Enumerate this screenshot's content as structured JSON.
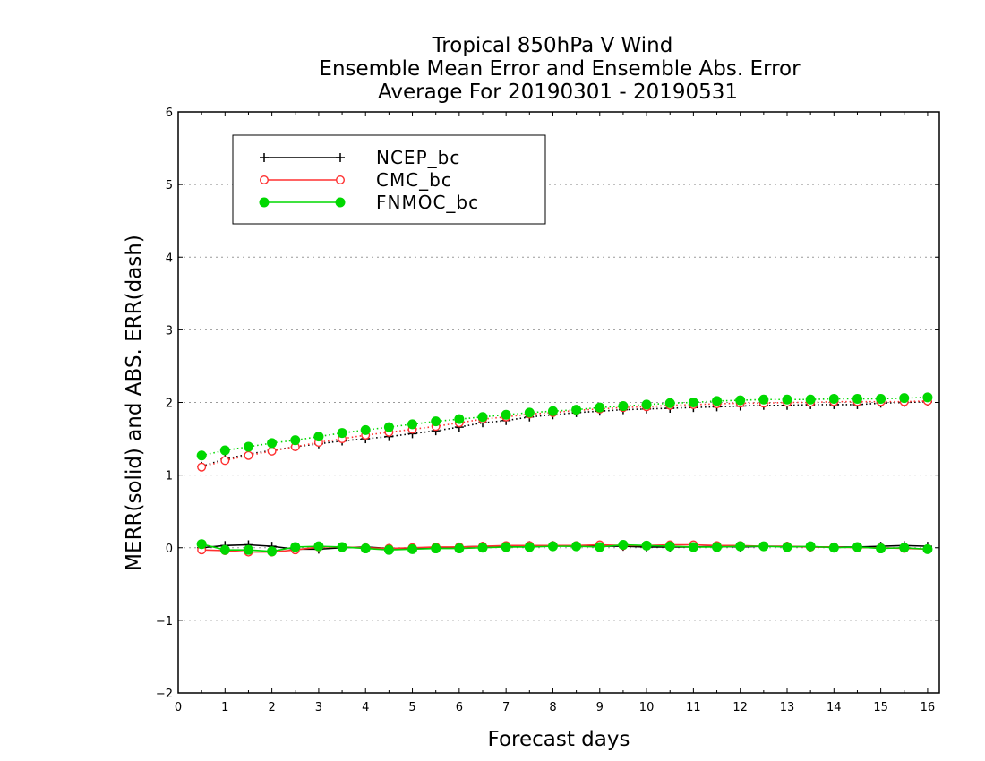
{
  "chart_data": {
    "type": "line",
    "title": [
      "Tropical 850hPa V Wind",
      "Ensemble Mean Error and Ensemble Abs. Error",
      "Average For 20190301 - 20190531"
    ],
    "xlabel": "Forecast days",
    "ylabel": "MERR(solid) and ABS. ERR(dash)",
    "xlim": [
      0,
      16.25
    ],
    "ylim": [
      -2,
      6
    ],
    "xticks": [
      0,
      1,
      2,
      3,
      4,
      5,
      6,
      7,
      8,
      9,
      10,
      11,
      12,
      13,
      14,
      15,
      16
    ],
    "yticks": [
      -2,
      -1,
      0,
      1,
      2,
      3,
      4,
      5,
      6
    ],
    "ytick_labels": [
      "−2",
      "−1",
      "0",
      "1",
      "2",
      "3",
      "4",
      "5",
      "6"
    ],
    "grid": "horizontal dotted",
    "legend": {
      "placement": "top-left",
      "entries": [
        {
          "name": "NCEP_bc",
          "color": "#000000",
          "marker": "plus"
        },
        {
          "name": "CMC_bc",
          "color": "#ff3030",
          "marker": "open-circle"
        },
        {
          "name": "FNMOC_bc",
          "color": "#00d800",
          "marker": "filled-circle"
        }
      ]
    },
    "x": [
      0.5,
      1,
      1.5,
      2,
      2.5,
      3,
      3.5,
      4,
      4.5,
      5,
      5.5,
      6,
      6.5,
      7,
      7.5,
      8,
      8.5,
      9,
      9.5,
      10,
      10.5,
      11,
      11.5,
      12,
      12.5,
      13,
      13.5,
      14,
      14.5,
      15,
      15.5,
      16
    ],
    "series": [
      {
        "name": "NCEP_bc",
        "kind": "mean error",
        "style": "solid",
        "values": [
          0.0,
          0.03,
          0.04,
          0.02,
          -0.02,
          -0.02,
          0.0,
          0.01,
          -0.01,
          -0.01,
          0.0,
          0.01,
          0.02,
          0.02,
          0.03,
          0.03,
          0.02,
          0.02,
          0.02,
          0.01,
          0.01,
          0.01,
          0.02,
          0.01,
          0.02,
          0.02,
          0.01,
          0.01,
          0.01,
          0.02,
          0.03,
          0.02
        ]
      },
      {
        "name": "CMC_bc",
        "kind": "mean error",
        "style": "solid",
        "values": [
          -0.03,
          -0.04,
          -0.06,
          -0.06,
          -0.03,
          0.01,
          0.01,
          0.0,
          -0.01,
          0.0,
          0.01,
          0.01,
          0.02,
          0.03,
          0.03,
          0.03,
          0.03,
          0.04,
          0.03,
          0.03,
          0.04,
          0.04,
          0.03,
          0.03,
          0.02,
          0.02,
          0.01,
          0.01,
          0.0,
          0.0,
          -0.01,
          -0.02
        ]
      },
      {
        "name": "FNMOC_bc",
        "kind": "mean error",
        "style": "solid",
        "values": [
          0.05,
          -0.03,
          -0.03,
          -0.05,
          0.01,
          0.02,
          0.01,
          -0.01,
          -0.03,
          -0.02,
          -0.01,
          -0.01,
          0.0,
          0.01,
          0.01,
          0.02,
          0.02,
          0.01,
          0.04,
          0.03,
          0.02,
          0.01,
          0.01,
          0.02,
          0.02,
          0.01,
          0.02,
          0.0,
          0.01,
          -0.01,
          0.0,
          -0.02
        ]
      },
      {
        "name": "NCEP_bc",
        "kind": "abs error",
        "style": "dotted",
        "values": [
          1.12,
          1.22,
          1.29,
          1.34,
          1.39,
          1.43,
          1.47,
          1.5,
          1.53,
          1.57,
          1.61,
          1.66,
          1.72,
          1.75,
          1.8,
          1.83,
          1.86,
          1.88,
          1.9,
          1.91,
          1.92,
          1.93,
          1.94,
          1.95,
          1.96,
          1.96,
          1.97,
          1.97,
          1.97,
          1.99,
          2.0,
          2.01
        ]
      },
      {
        "name": "CMC_bc",
        "kind": "abs error",
        "style": "dotted",
        "values": [
          1.11,
          1.2,
          1.27,
          1.33,
          1.39,
          1.45,
          1.5,
          1.55,
          1.59,
          1.63,
          1.67,
          1.72,
          1.77,
          1.8,
          1.84,
          1.86,
          1.89,
          1.91,
          1.93,
          1.94,
          1.96,
          1.97,
          1.98,
          1.99,
          1.99,
          2.0,
          2.0,
          2.01,
          2.01,
          2.01,
          2.01,
          2.02
        ]
      },
      {
        "name": "FNMOC_bc",
        "kind": "abs error",
        "style": "dotted",
        "values": [
          1.27,
          1.34,
          1.39,
          1.44,
          1.48,
          1.53,
          1.58,
          1.62,
          1.66,
          1.7,
          1.74,
          1.77,
          1.8,
          1.83,
          1.86,
          1.88,
          1.9,
          1.93,
          1.95,
          1.97,
          1.99,
          2.0,
          2.02,
          2.03,
          2.04,
          2.04,
          2.04,
          2.05,
          2.05,
          2.05,
          2.06,
          2.07
        ]
      }
    ]
  }
}
